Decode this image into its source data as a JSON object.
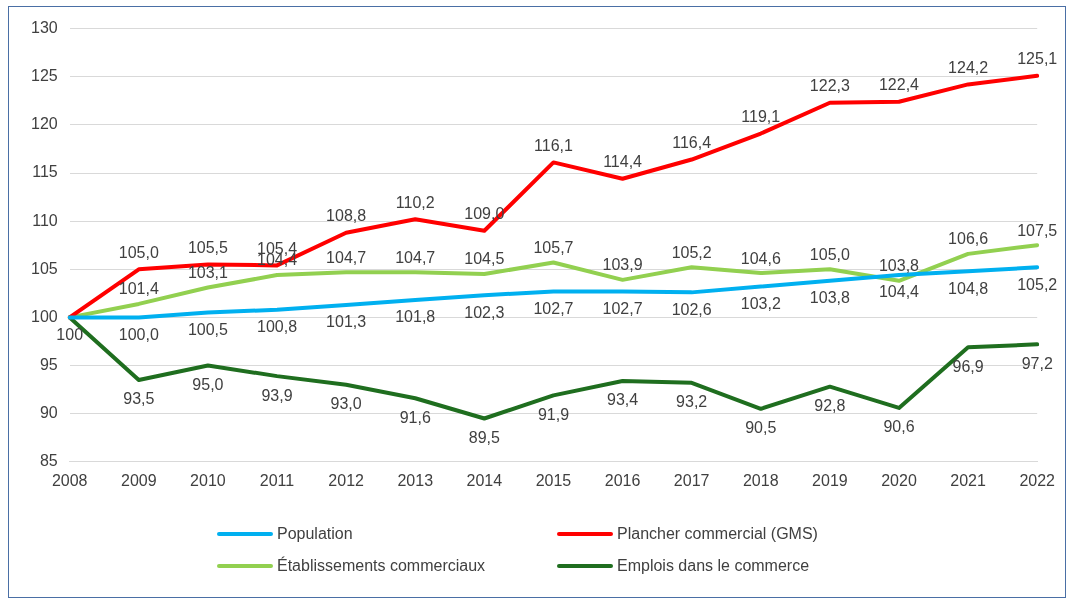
{
  "chart_data": {
    "type": "line",
    "categories": [
      "2008",
      "2009",
      "2010",
      "2011",
      "2012",
      "2013",
      "2014",
      "2015",
      "2016",
      "2017",
      "2018",
      "2019",
      "2020",
      "2021",
      "2022"
    ],
    "series": [
      {
        "name": "Population",
        "color": "#00b0f0",
        "values": [
          100,
          100.0,
          100.5,
          100.8,
          101.3,
          101.8,
          102.3,
          102.7,
          102.7,
          102.6,
          103.2,
          103.8,
          104.4,
          104.8,
          105.2
        ],
        "value_labels": [
          "100",
          "100,0",
          "100,5",
          "100,8",
          "101,3",
          "101,8",
          "102,3",
          "102,7",
          "102,7",
          "102,6",
          "103,2",
          "103,8",
          "104,4",
          "104,8",
          "105,2"
        ]
      },
      {
        "name": "Plancher commercial (GMS)",
        "color": "#ff0000",
        "values": [
          100,
          105.0,
          105.5,
          105.4,
          108.8,
          110.2,
          109.0,
          116.1,
          114.4,
          116.4,
          119.1,
          122.3,
          122.4,
          124.2,
          125.1
        ],
        "value_labels": [
          null,
          "105,0",
          "105,5",
          "105,4",
          "108,8",
          "110,2",
          "109,0",
          "116,1",
          "114,4",
          "116,4",
          "119,1",
          "122,3",
          "122,4",
          "124,2",
          "125,1"
        ]
      },
      {
        "name": "Établissements commerciaux",
        "color": "#92d050",
        "values": [
          100,
          101.4,
          103.1,
          104.4,
          104.7,
          104.7,
          104.5,
          105.7,
          103.9,
          105.2,
          104.6,
          105.0,
          103.8,
          106.6,
          107.5
        ],
        "value_labels": [
          null,
          "101,4",
          "103,1",
          "104,4",
          "104,7",
          "104,7",
          "104,5",
          "105,7",
          "103,9",
          "105,2",
          "104,6",
          "105,0",
          "103,8",
          "106,6",
          "107,5"
        ]
      },
      {
        "name": "Emplois dans le commerce",
        "color": "#1f6e1f",
        "values": [
          100,
          93.5,
          95.0,
          93.9,
          93.0,
          91.6,
          89.5,
          91.9,
          93.4,
          93.2,
          90.5,
          92.8,
          90.6,
          96.9,
          97.2
        ],
        "value_labels": [
          null,
          "93,5",
          "95,0",
          "93,9",
          "93,0",
          "91,6",
          "89,5",
          "91,9",
          "93,4",
          "93,2",
          "90,5",
          "92,8",
          "90,6",
          "96,9",
          "97,2"
        ]
      }
    ],
    "ylim": [
      85,
      130
    ],
    "yticks": [
      85,
      90,
      95,
      100,
      105,
      110,
      115,
      120,
      125,
      130
    ],
    "grid": "y",
    "legend": "bottom",
    "marker": "none",
    "line_style": "solid"
  }
}
